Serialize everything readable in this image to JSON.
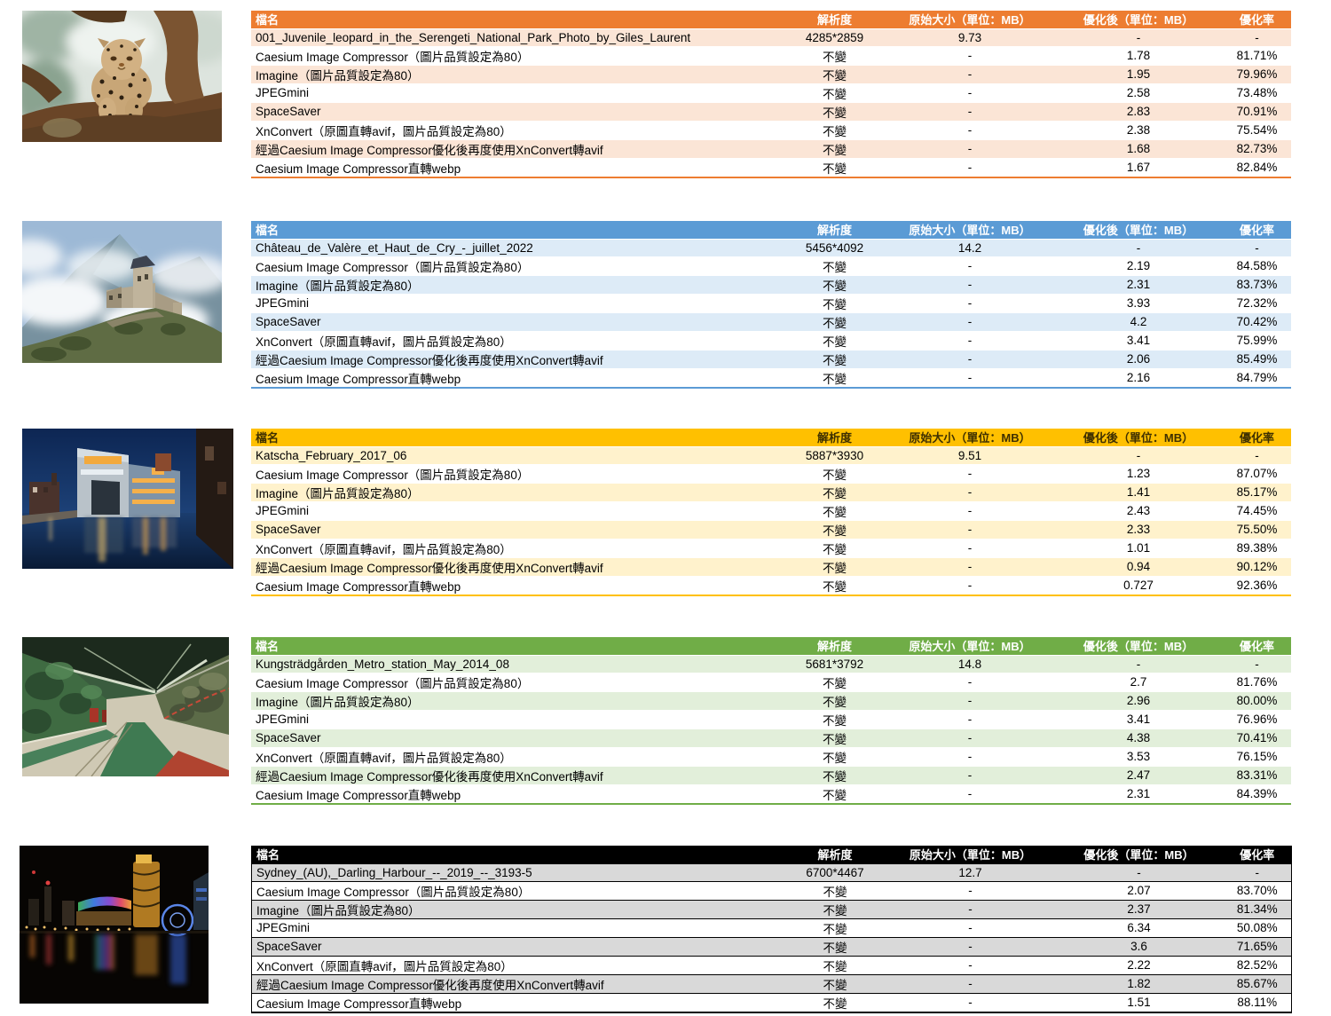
{
  "columns": [
    "檔名",
    "解析度",
    "原始大小（單位：MB）",
    "優化後（單位：MB）",
    "優化率"
  ],
  "tables": [
    {
      "photo": "leopard-in-tree-photo",
      "theme": {
        "header_bg": "#ED7D31",
        "header_text": "#FFFFFF",
        "row_tint": "#FBE5D6",
        "separator": "#FFFFFF",
        "outer_border": null
      },
      "rows": [
        [
          "001_Juvenile_leopard_in_the_Serengeti_National_Park_Photo_by_Giles_Laurent",
          "4285*2859",
          "9.73",
          "-",
          "-"
        ],
        [
          "Caesium Image Compressor（圖片品質設定為80）",
          "不變",
          "-",
          "1.78",
          "81.71%"
        ],
        [
          "Imagine（圖片品質設定為80）",
          "不變",
          "-",
          "1.95",
          "79.96%"
        ],
        [
          "JPEGmini",
          "不變",
          "-",
          "2.58",
          "73.48%"
        ],
        [
          "SpaceSaver",
          "不變",
          "-",
          "2.83",
          "70.91%"
        ],
        [
          "XnConvert（原圖直轉avif，圖片品質設定為80）",
          "不變",
          "-",
          "2.38",
          "75.54%"
        ],
        [
          "經過Caesium Image Compressor優化後再度使用XnConvert轉avif",
          "不變",
          "-",
          "1.68",
          "82.73%"
        ],
        [
          "Caesium Image Compressor直轉webp",
          "不變",
          "-",
          "1.67",
          "82.84%"
        ]
      ]
    },
    {
      "photo": "castle-on-hill-photo",
      "theme": {
        "header_bg": "#5B9BD5",
        "header_text": "#FFFFFF",
        "row_tint": "#DDEBF7",
        "separator": "#FFFFFF",
        "outer_border": null
      },
      "rows": [
        [
          "Château_de_Valère_et_Haut_de_Cry_-_juillet_2022",
          "5456*4092",
          "14.2",
          "-",
          "-"
        ],
        [
          "Caesium Image Compressor（圖片品質設定為80）",
          "不變",
          "-",
          "2.19",
          "84.58%"
        ],
        [
          "Imagine（圖片品質設定為80）",
          "不變",
          "-",
          "2.31",
          "83.73%"
        ],
        [
          "JPEGmini",
          "不變",
          "-",
          "3.93",
          "72.32%"
        ],
        [
          "SpaceSaver",
          "不變",
          "-",
          "4.2",
          "70.42%"
        ],
        [
          "XnConvert（原圖直轉avif，圖片品質設定為80）",
          "不變",
          "-",
          "3.41",
          "75.99%"
        ],
        [
          "經過Caesium Image Compressor優化後再度使用XnConvert轉avif",
          "不變",
          "-",
          "2.06",
          "85.49%"
        ],
        [
          "Caesium Image Compressor直轉webp",
          "不變",
          "-",
          "2.16",
          "84.79%"
        ]
      ]
    },
    {
      "photo": "waterfront-building-twilight-photo",
      "theme": {
        "header_bg": "#FFC000",
        "header_text": "#3F3000",
        "row_tint": "#FFF2CC",
        "separator": "#FFFFFF",
        "outer_border": null
      },
      "rows": [
        [
          "Katscha_February_2017_06",
          "5887*3930",
          "9.51",
          "-",
          "-"
        ],
        [
          "Caesium Image Compressor（圖片品質設定為80）",
          "不變",
          "-",
          "1.23",
          "87.07%"
        ],
        [
          "Imagine（圖片品質設定為80）",
          "不變",
          "-",
          "1.41",
          "85.17%"
        ],
        [
          "JPEGmini",
          "不變",
          "-",
          "2.43",
          "74.45%"
        ],
        [
          "SpaceSaver",
          "不變",
          "-",
          "2.33",
          "75.50%"
        ],
        [
          "XnConvert（原圖直轉avif，圖片品質設定為80）",
          "不變",
          "-",
          "1.01",
          "89.38%"
        ],
        [
          "經過Caesium Image Compressor優化後再度使用XnConvert轉avif",
          "不變",
          "-",
          "0.94",
          "90.12%"
        ],
        [
          "Caesium Image Compressor直轉webp",
          "不變",
          "-",
          "0.727",
          "92.36%"
        ]
      ]
    },
    {
      "photo": "green-metro-station-photo",
      "theme": {
        "header_bg": "#70AD47",
        "header_text": "#FFFFFF",
        "row_tint": "#E2EFDA",
        "separator": "#FFFFFF",
        "outer_border": null
      },
      "rows": [
        [
          "Kungsträdgården_Metro_station_May_2014_08",
          "5681*3792",
          "14.8",
          "-",
          "-"
        ],
        [
          "Caesium Image Compressor（圖片品質設定為80）",
          "不變",
          "-",
          "2.7",
          "81.76%"
        ],
        [
          "Imagine（圖片品質設定為80）",
          "不變",
          "-",
          "2.96",
          "80.00%"
        ],
        [
          "JPEGmini",
          "不變",
          "-",
          "3.41",
          "76.96%"
        ],
        [
          "SpaceSaver",
          "不變",
          "-",
          "4.38",
          "70.41%"
        ],
        [
          "XnConvert（原圖直轉avif，圖片品質設定為80）",
          "不變",
          "-",
          "3.53",
          "76.15%"
        ],
        [
          "經過Caesium Image Compressor優化後再度使用XnConvert轉avif",
          "不變",
          "-",
          "2.47",
          "83.31%"
        ],
        [
          "Caesium Image Compressor直轉webp",
          "不變",
          "-",
          "2.31",
          "84.39%"
        ]
      ]
    },
    {
      "photo": "harbour-night-lights-photo",
      "theme": {
        "header_bg": "#000000",
        "header_text": "#FFFFFF",
        "row_tint": "#D9D9D9",
        "separator": "#000000",
        "outer_border": "#000000"
      },
      "rows": [
        [
          "Sydney_(AU),_Darling_Harbour_--_2019_--_3193-5",
          "6700*4467",
          "12.7",
          "-",
          "-"
        ],
        [
          "Caesium Image Compressor（圖片品質設定為80）",
          "不變",
          "-",
          "2.07",
          "83.70%"
        ],
        [
          "Imagine（圖片品質設定為80）",
          "不變",
          "-",
          "2.37",
          "81.34%"
        ],
        [
          "JPEGmini",
          "不變",
          "-",
          "6.34",
          "50.08%"
        ],
        [
          "SpaceSaver",
          "不變",
          "-",
          "3.6",
          "71.65%"
        ],
        [
          "XnConvert（原圖直轉avif，圖片品質設定為80）",
          "不變",
          "-",
          "2.22",
          "82.52%"
        ],
        [
          "經過Caesium Image Compressor優化後再度使用XnConvert轉avif",
          "不變",
          "-",
          "1.82",
          "85.67%"
        ],
        [
          "Caesium Image Compressor直轉webp",
          "不變",
          "-",
          "1.51",
          "88.11%"
        ]
      ]
    }
  ]
}
